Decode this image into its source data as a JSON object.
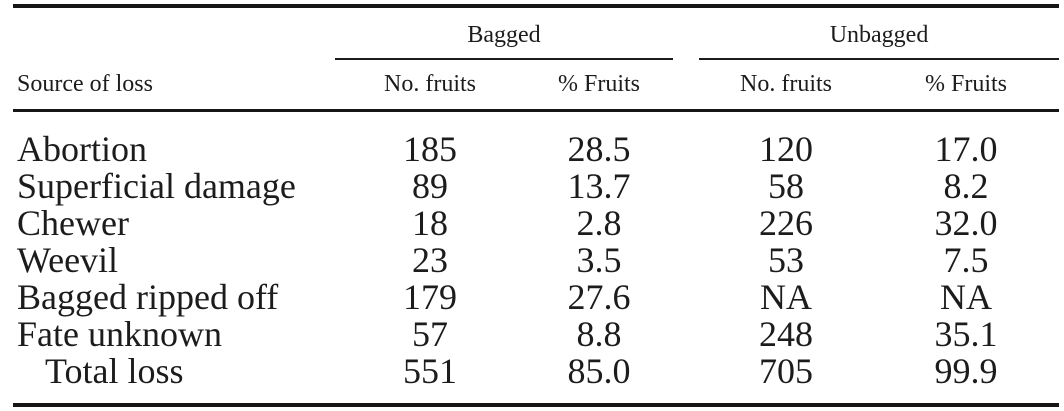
{
  "colors": {
    "background": "#ffffff",
    "text": "#1c1c1c",
    "rule": "#161616"
  },
  "table": {
    "stub_header": "Source of loss",
    "groups": [
      {
        "label": "Bagged"
      },
      {
        "label": "Unbagged"
      }
    ],
    "columns": [
      "No. fruits",
      "% Fruits",
      "No. fruits",
      "% Fruits"
    ],
    "rows": [
      {
        "label": "Abortion",
        "values": [
          "185",
          "28.5",
          "120",
          "17.0"
        ]
      },
      {
        "label": "Superficial damage",
        "values": [
          "89",
          "13.7",
          "58",
          "8.2"
        ]
      },
      {
        "label": "Chewer",
        "values": [
          "18",
          "2.8",
          "226",
          "32.0"
        ]
      },
      {
        "label": "Weevil",
        "values": [
          "23",
          "3.5",
          "53",
          "7.5"
        ]
      },
      {
        "label": "Bagged ripped off",
        "values": [
          "179",
          "27.6",
          "NA",
          "NA"
        ]
      },
      {
        "label": "Fate unknown",
        "values": [
          "57",
          "8.8",
          "248",
          "35.1"
        ]
      },
      {
        "label": "Total loss",
        "values": [
          "551",
          "85.0",
          "705",
          "99.9"
        ],
        "indented": true
      }
    ]
  },
  "chart_data": {
    "type": "table",
    "column_groups": [
      "Bagged",
      "Unbagged"
    ],
    "columns": [
      "Source of loss",
      "Bagged No. fruits",
      "Bagged % Fruits",
      "Unbagged No. fruits",
      "Unbagged % Fruits"
    ],
    "rows": [
      [
        "Abortion",
        185,
        28.5,
        120,
        17.0
      ],
      [
        "Superficial damage",
        89,
        13.7,
        58,
        8.2
      ],
      [
        "Chewer",
        18,
        2.8,
        226,
        32.0
      ],
      [
        "Weevil",
        23,
        3.5,
        53,
        7.5
      ],
      [
        "Bagged ripped off",
        179,
        27.6,
        "NA",
        "NA"
      ],
      [
        "Fate unknown",
        57,
        8.8,
        248,
        35.1
      ],
      [
        "Total loss",
        551,
        85.0,
        705,
        99.9
      ]
    ]
  }
}
